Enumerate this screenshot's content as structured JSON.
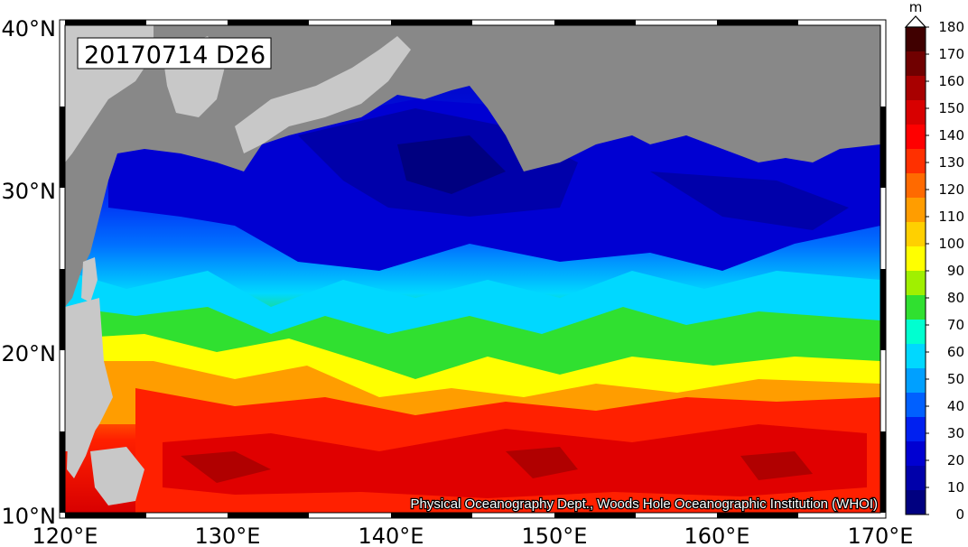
{
  "map": {
    "title": "20170714 D26",
    "credit": "Physical Oceanography Dept., Woods Hole Oceanographic Institution (WHOI)",
    "x_tick_labels": [
      "120°E",
      "130°E",
      "140°E",
      "150°E",
      "160°E",
      "170°E"
    ],
    "y_tick_labels": [
      "40°N",
      "30°N",
      "20°N",
      "10°N"
    ],
    "lon_range": [
      120,
      170
    ],
    "lat_range": [
      10,
      40
    ],
    "variable": "D26",
    "land_color": "#888888",
    "missing_color": "#c8c8c8"
  },
  "colorbar": {
    "unit": "m",
    "tick_labels": [
      "180",
      "170",
      "160",
      "150",
      "140",
      "130",
      "120",
      "110",
      "100",
      "90",
      "80",
      "70",
      "60",
      "50",
      "40",
      "30",
      "20",
      "10",
      "0"
    ],
    "range": [
      0,
      180
    ],
    "step": 10,
    "extend": "max",
    "colors": [
      "#000080",
      "#0000aa",
      "#0000d2",
      "#0020f0",
      "#0060ff",
      "#00a0ff",
      "#00d8ff",
      "#00ffd0",
      "#30e030",
      "#a0f000",
      "#ffff00",
      "#ffd000",
      "#ff9d00",
      "#ff6a00",
      "#ff3000",
      "#ff0000",
      "#d80000",
      "#a80000",
      "#700000",
      "#400000"
    ]
  }
}
